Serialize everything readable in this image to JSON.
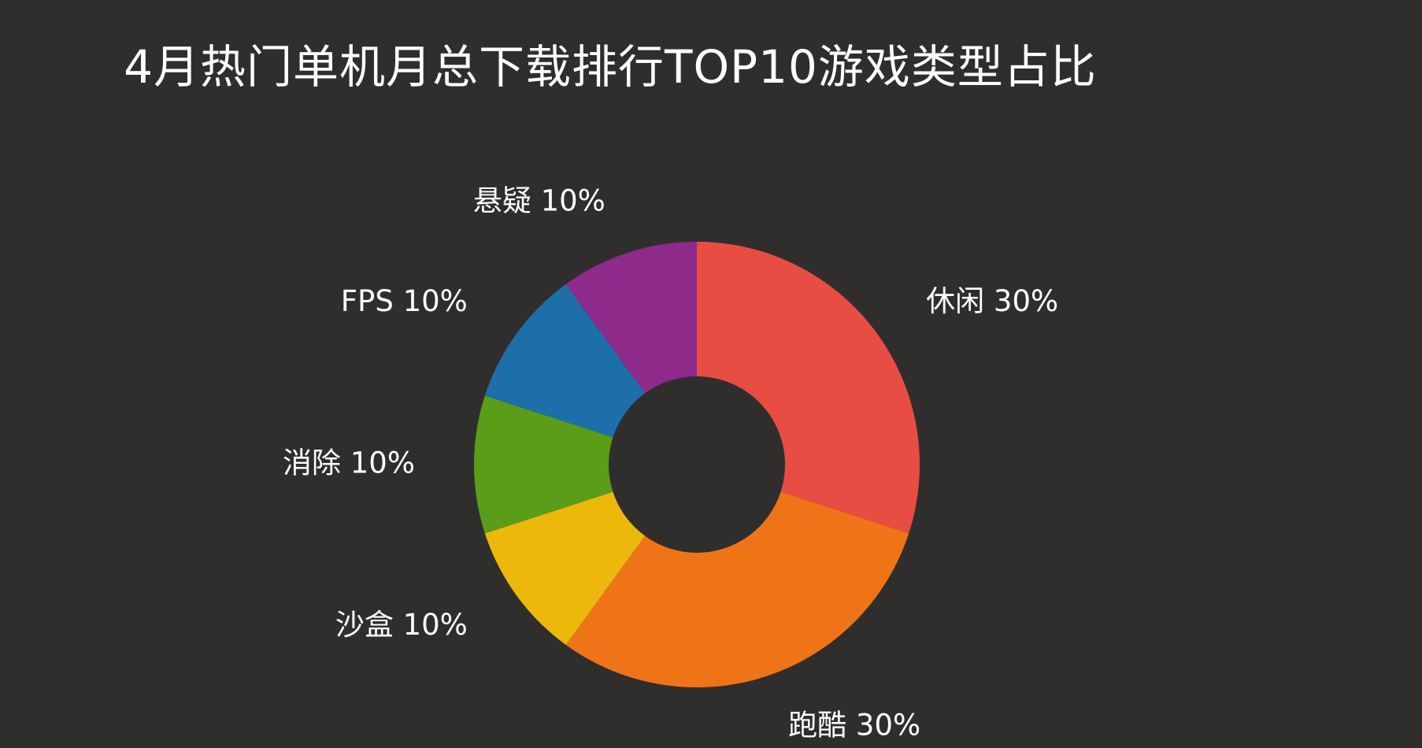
{
  "chart_data": {
    "type": "pie",
    "donut": true,
    "title": "4月热门单机月总下载排行TOP10游戏类型占比",
    "slices": [
      {
        "label": "休闲",
        "value": 30,
        "display": "休闲 30%",
        "color": "#e84d44"
      },
      {
        "label": "跑酷",
        "value": 30,
        "display": "跑酷 30%",
        "color": "#ef7418"
      },
      {
        "label": "沙盒",
        "value": 10,
        "display": "沙盒 10%",
        "color": "#ecb80b"
      },
      {
        "label": "消除",
        "value": 10,
        "display": "消除 10%",
        "color": "#5a9d18"
      },
      {
        "label": "FPS",
        "value": 10,
        "display": "FPS 10%",
        "color": "#1c6fa9"
      },
      {
        "label": "悬疑",
        "value": 10,
        "display": "悬疑 10%",
        "color": "#8e2a8a"
      }
    ],
    "start_angle": "12 o'clock",
    "direction": "clockwise",
    "legend": "none"
  }
}
